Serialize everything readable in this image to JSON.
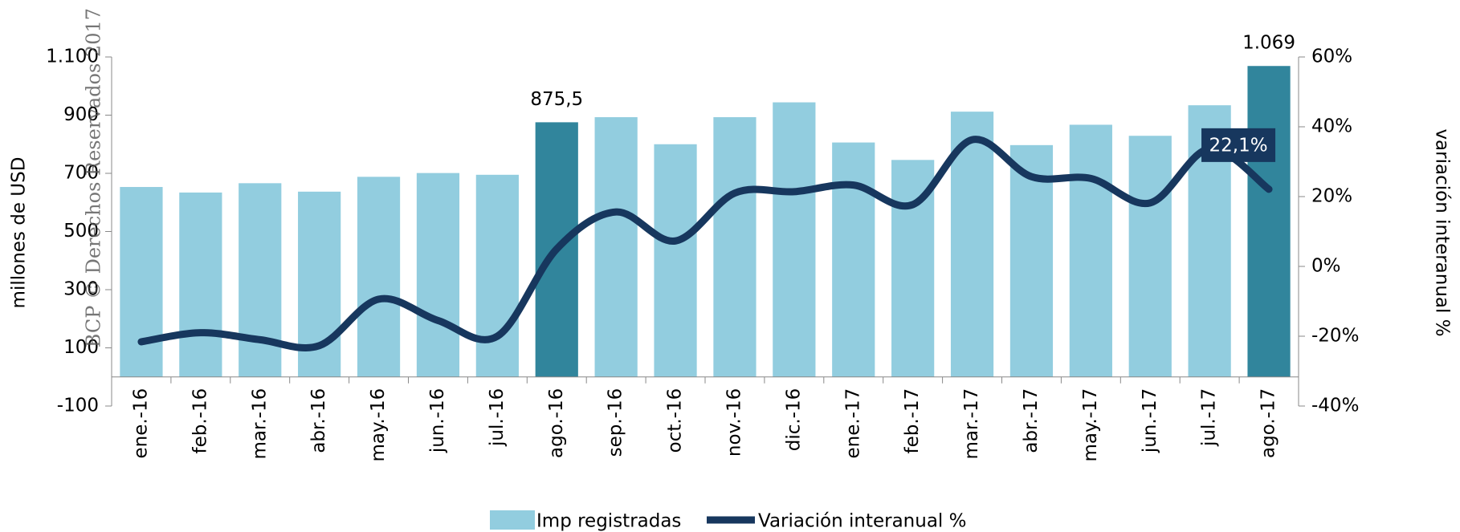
{
  "chart_data": {
    "type": "bar_line",
    "watermark": "BCP © Derechos Reservados 2017",
    "ylabel": "millones de USD",
    "y2label": "variación interanual %",
    "categories": [
      "ene.-16",
      "feb.-16",
      "mar.-16",
      "abr.-16",
      "may.-16",
      "jun.-16",
      "jul.-16",
      "ago.-16",
      "sep.-16",
      "oct.-16",
      "nov.-16",
      "dic.-16",
      "ene.-17",
      "feb.-17",
      "mar.-17",
      "abr.-17",
      "may.-17",
      "jun.-17",
      "jul.-17",
      "ago.-17"
    ],
    "series": [
      {
        "name": "Imp registradas",
        "type": "bar",
        "color": "#92cddf",
        "colors": [
          "#92cddf",
          "#92cddf",
          "#92cddf",
          "#92cddf",
          "#92cddf",
          "#92cddf",
          "#92cddf",
          "#31859c",
          "#92cddf",
          "#92cddf",
          "#92cddf",
          "#92cddf",
          "#92cddf",
          "#92cddf",
          "#92cddf",
          "#92cddf",
          "#92cddf",
          "#92cddf",
          "#92cddf",
          "#31859c"
        ],
        "values": [
          653,
          634,
          666,
          637,
          688,
          701,
          695,
          875.5,
          893,
          800,
          893,
          944,
          806,
          746,
          912,
          797,
          867,
          829,
          934,
          1069
        ],
        "value_labels": [
          null,
          null,
          null,
          null,
          null,
          null,
          null,
          "875,5",
          null,
          null,
          null,
          null,
          null,
          null,
          null,
          null,
          null,
          null,
          null,
          "1.069"
        ]
      },
      {
        "name": "Variación interanual %",
        "type": "line",
        "axis": "y2",
        "color": "#17375e",
        "values": [
          -21.6,
          -19,
          -21,
          -22.7,
          -9.4,
          -15.5,
          -20,
          5,
          15.6,
          7.3,
          21,
          21.4,
          23.3,
          17.7,
          36.3,
          25.7,
          25.2,
          18.2,
          33.7,
          22.1
        ],
        "value_labels": [
          null,
          null,
          null,
          null,
          null,
          null,
          null,
          null,
          null,
          null,
          null,
          null,
          null,
          null,
          null,
          null,
          null,
          null,
          null,
          "22,1%"
        ]
      }
    ],
    "ylim": [
      -100,
      1100
    ],
    "yticks": [
      -100,
      100,
      300,
      500,
      700,
      900,
      {
        "value": 1100,
        "label": "1.100"
      }
    ],
    "y2lim": [
      -40,
      60
    ],
    "y2ticks": [
      {
        "value": -40,
        "label": "-40%"
      },
      {
        "value": -20,
        "label": "-20%"
      },
      {
        "value": 0,
        "label": "0%"
      },
      {
        "value": 20,
        "label": "20%"
      },
      {
        "value": 40,
        "label": "40%"
      },
      {
        "value": 60,
        "label": "60%"
      }
    ]
  }
}
